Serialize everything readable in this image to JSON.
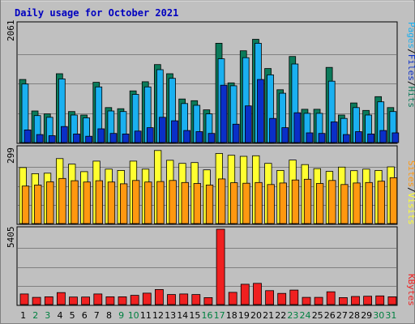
{
  "colors": {
    "background": "#c0c0c0",
    "title": "#0000c0",
    "hits": "#0b7a5a",
    "files": "#1ab0f0",
    "pages": "#0a2fc8",
    "visits": "#ffff30",
    "sites": "#ff9810",
    "kbytes": "#f02020",
    "weekend_label": "#008040",
    "weekday_label": "#000000",
    "separator": "#000000"
  },
  "chart_data": {
    "type": "bar",
    "title": "Daily usage for October 2021",
    "categories": [
      "1",
      "2",
      "3",
      "4",
      "5",
      "6",
      "7",
      "8",
      "9",
      "10",
      "11",
      "12",
      "13",
      "14",
      "15",
      "16",
      "17",
      "18",
      "19",
      "20",
      "21",
      "22",
      "23",
      "24",
      "25",
      "26",
      "27",
      "28",
      "29",
      "30",
      "31"
    ],
    "weekend_days": [
      "2",
      "3",
      "9",
      "10",
      "16",
      "17",
      "23",
      "24",
      "30",
      "31"
    ],
    "panels": [
      {
        "name": "hits-files-pages",
        "ymax_label": "2061",
        "ylim": [
          0,
          2061
        ],
        "legend": [
          {
            "label": "Pages",
            "color": "#1ab0f0"
          },
          {
            "label": "/",
            "color": "#000000"
          },
          {
            "label": "Files",
            "color": "#0a2fc8"
          },
          {
            "label": "/",
            "color": "#000000"
          },
          {
            "label": "Hits",
            "color": "#0b7a5a"
          }
        ],
        "series": [
          {
            "name": "Hits",
            "color": "#0b7a5a",
            "values": [
              1100,
              550,
              500,
              1200,
              540,
              480,
              1050,
              610,
              590,
              900,
              1060,
              1360,
              1200,
              760,
              730,
              570,
              1730,
              1040,
              1600,
              1800,
              1290,
              920,
              1500,
              580,
              580,
              1310,
              480,
              690,
              560,
              800,
              610
            ]
          },
          {
            "name": "Files",
            "color": "#1ab0f0",
            "values": [
              1020,
              470,
              440,
              1110,
              480,
              430,
              970,
              550,
              540,
              840,
              970,
              1270,
              1120,
              680,
              650,
              500,
              1460,
              990,
              1480,
              1730,
              1180,
              860,
              1370,
              510,
              510,
              1070,
              420,
              610,
              480,
              710,
              540
            ]
          },
          {
            "name": "Pages",
            "color": "#0a2fc8",
            "values": [
              220,
              140,
              120,
              280,
              150,
              110,
              240,
              160,
              150,
              200,
              260,
              440,
              380,
              210,
              190,
              160,
              1000,
              320,
              640,
              1100,
              420,
              260,
              520,
              170,
              160,
              360,
              140,
              190,
              150,
              210,
              170
            ]
          }
        ]
      },
      {
        "name": "visits-sites",
        "ymax_label": "299",
        "ylim": [
          0,
          299
        ],
        "legend": [
          {
            "label": "Sites",
            "color": "#ff9810"
          },
          {
            "label": "/",
            "color": "#000000"
          },
          {
            "label": "Visits",
            "color": "#ffff30"
          }
        ],
        "series": [
          {
            "name": "Visits",
            "color": "#ffff30",
            "values": [
              222,
              198,
              200,
              258,
              236,
              206,
              248,
              216,
              211,
              248,
              216,
              290,
              251,
              239,
              242,
              213,
              278,
              271,
              267,
              269,
              239,
              211,
              252,
              234,
              218,
              207,
              224,
              210,
              216,
              211,
              225
            ]
          },
          {
            "name": "Sites",
            "color": "#ff9810",
            "values": [
              149,
              153,
              166,
              179,
              170,
              165,
              170,
              165,
              158,
              171,
              165,
              167,
              171,
              163,
              159,
              153,
              177,
              162,
              160,
              163,
              155,
              161,
              173,
              176,
              159,
              171,
              155,
              161,
              163,
              168,
              182
            ]
          }
        ]
      },
      {
        "name": "kbytes",
        "ymax_label": "5405",
        "ylim": [
          0,
          5405
        ],
        "legend": [
          {
            "label": "KBytes",
            "color": "#f02020"
          }
        ],
        "series": [
          {
            "name": "KBytes",
            "color": "#f02020",
            "values": [
              760,
              520,
              560,
              860,
              540,
              540,
              760,
              560,
              560,
              660,
              820,
              1080,
              720,
              760,
              720,
              500,
              5405,
              880,
              1460,
              1520,
              1000,
              800,
              1040,
              520,
              520,
              920,
              500,
              580,
              600,
              620,
              560
            ]
          }
        ]
      }
    ]
  }
}
